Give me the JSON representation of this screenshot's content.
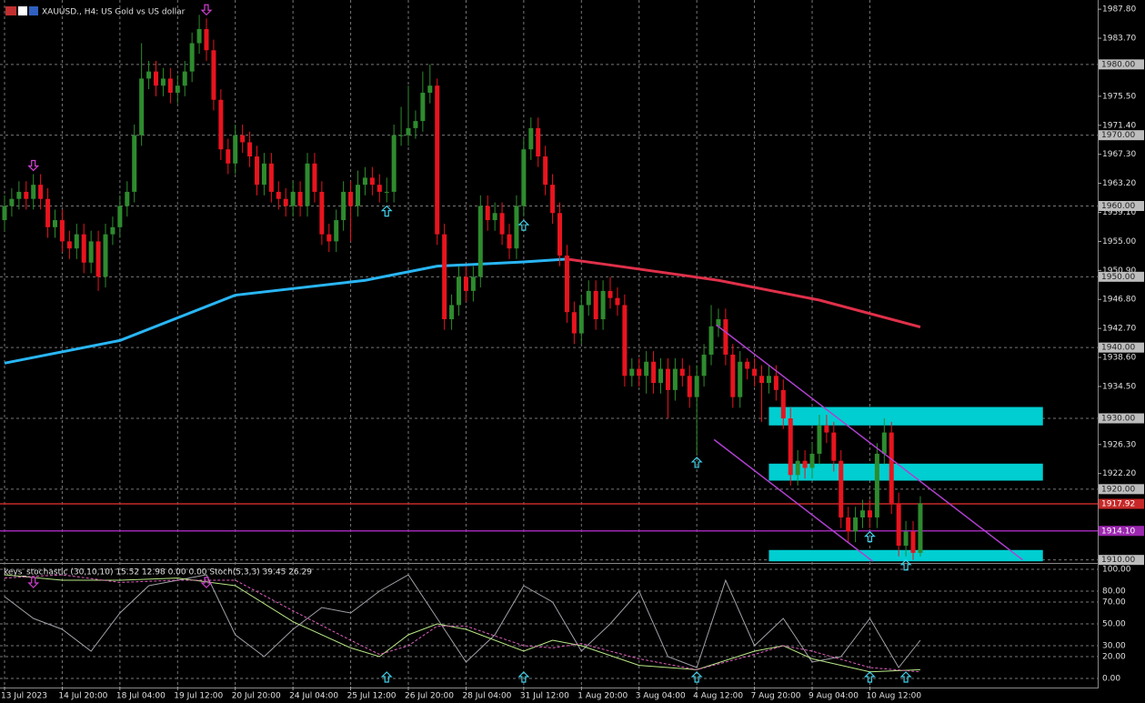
{
  "chart_data": {
    "type": "candlestick",
    "title": "XAUUSD., H4:  US Gold vs US dollar",
    "up_color": "#2e8b2e",
    "down_color": "#e8141e",
    "grid": true,
    "xlim": [
      -0.63,
      151.6
    ],
    "ylim": [
      1909.7,
      1989.1
    ],
    "xticks": [
      {
        "value": 0,
        "label": "13 Jul 2023"
      },
      {
        "value": 8,
        "label": "14 Jul 20:00"
      },
      {
        "value": 16,
        "label": "18 Jul 04:00"
      },
      {
        "value": 24,
        "label": "19 Jul 12:00"
      },
      {
        "value": 32,
        "label": "20 Jul 20:00"
      },
      {
        "value": 40,
        "label": "24 Jul 04:00"
      },
      {
        "value": 48,
        "label": "25 Jul 12:00"
      },
      {
        "value": 56,
        "label": "26 Jul 20:00"
      },
      {
        "value": 64,
        "label": "28 Jul 04:00"
      },
      {
        "value": 72,
        "label": "31 Jul 12:00"
      },
      {
        "value": 80,
        "label": "1 Aug 20:00"
      },
      {
        "value": 88,
        "label": "3 Aug 04:00"
      },
      {
        "value": 96,
        "label": "4 Aug 12:00"
      },
      {
        "value": 104,
        "label": "7 Aug 20:00"
      },
      {
        "value": 112,
        "label": "9 Aug 04:00"
      },
      {
        "value": 120,
        "label": "10 Aug 12:00"
      }
    ],
    "yticks": [
      {
        "value": 1987.8,
        "label": "1987.80"
      },
      {
        "value": 1983.7,
        "label": "1983.70"
      },
      {
        "value": 1975.5,
        "label": "1975.50"
      },
      {
        "value": 1971.4,
        "label": "1971.40"
      },
      {
        "value": 1967.3,
        "label": "1967.30"
      },
      {
        "value": 1963.2,
        "label": "1963.20"
      },
      {
        "value": 1959.1,
        "label": "1959.10"
      },
      {
        "value": 1955,
        "label": "1955.00"
      },
      {
        "value": 1950.9,
        "label": "1950.90"
      },
      {
        "value": 1946.8,
        "label": "1946.80"
      },
      {
        "value": 1942.7,
        "label": "1942.70"
      },
      {
        "value": 1938.6,
        "label": "1938.60"
      },
      {
        "value": 1934.5,
        "label": "1934.50"
      },
      {
        "value": 1926.3,
        "label": "1926.30"
      },
      {
        "value": 1922.2,
        "label": "1922.20"
      }
    ],
    "levels": [
      {
        "value": 1980,
        "label": "1980.00"
      },
      {
        "value": 1970,
        "label": "1970.00"
      },
      {
        "value": 1960,
        "label": "1960.00"
      },
      {
        "value": 1950,
        "label": "1950.00"
      },
      {
        "value": 1940,
        "label": "1940.00"
      },
      {
        "value": 1930,
        "label": "1930.00"
      },
      {
        "value": 1920,
        "label": "1920.00"
      },
      {
        "value": 1910,
        "label": "1910.00"
      }
    ],
    "hlines": [
      {
        "value": 1917.92,
        "label": "1917.92",
        "color": "#c62828"
      },
      {
        "value": 1914.1,
        "label": "1914.10",
        "color": "#9c27b0"
      }
    ],
    "zones": [
      [
        1929,
        1931.6
      ],
      [
        1921.2,
        1923.6
      ],
      [
        1909.8,
        1911.4
      ]
    ],
    "zone_start": 106,
    "zone_end": 144,
    "zone_color": "#00ced1",
    "trendlines": [
      [
        [
          98.7,
          1943.2
        ],
        [
          141.2,
          1910
        ]
      ],
      [
        [
          98.4,
          1927
        ],
        [
          120.4,
          1909.8
        ]
      ]
    ],
    "trendline_color": "#b040d0",
    "arrows_up": [
      53,
      72,
      96,
      120,
      125
    ],
    "arrows_down": [
      4,
      28
    ],
    "open": [
      1958,
      1960,
      1961,
      1962,
      1961,
      1963,
      1961,
      1957,
      1958,
      1955,
      1954,
      1956,
      1952,
      1955,
      1950,
      1956,
      1957,
      1960,
      1962,
      1970,
      1978,
      1979,
      1977,
      1978,
      1976,
      1977,
      1979,
      1983,
      1985,
      1982,
      1975,
      1968,
      1966,
      1970,
      1969,
      1967,
      1963,
      1966,
      1962,
      1961,
      1960,
      1962,
      1960,
      1966,
      1962,
      1956,
      1955,
      1958,
      1962,
      1960,
      1963,
      1964,
      1963,
      1962,
      1962,
      1970,
      1970,
      1971,
      1972,
      1976,
      1977,
      1956,
      1944,
      1946,
      1950,
      1948,
      1950,
      1960,
      1958,
      1959,
      1956,
      1954,
      1960,
      1968,
      1971,
      1967,
      1963,
      1959,
      1953,
      1945,
      1942,
      1946,
      1948,
      1944,
      1948,
      1947,
      1946,
      1936,
      1937,
      1936,
      1938,
      1935,
      1937,
      1934,
      1937,
      1936,
      1933,
      1936,
      1939,
      1943,
      1944,
      1939,
      1933,
      1938,
      1937,
      1936,
      1935,
      1936,
      1934,
      1930,
      1922,
      1924,
      1923,
      1925,
      1929,
      1928,
      1924,
      1916,
      1914,
      1916,
      1917,
      1916,
      1925,
      1928,
      1918,
      1912,
      1914,
      1911
    ],
    "high": [
      1961.5,
      1962.5,
      1963.5,
      1963.5,
      1964.5,
      1964.5,
      1962.5,
      1959.5,
      1959.5,
      1956.5,
      1957.5,
      1957.5,
      1956.5,
      1956.5,
      1957.5,
      1958.5,
      1961.5,
      1963.5,
      1971.5,
      1983,
      1980.5,
      1980.5,
      1979.5,
      1979.5,
      1978.5,
      1980.5,
      1984.5,
      1987,
      1986.5,
      1983.5,
      1976.5,
      1969.5,
      1971.5,
      1971.5,
      1970.5,
      1968.5,
      1967.5,
      1967.5,
      1963.5,
      1962.5,
      1963.5,
      1963.5,
      1967.5,
      1967.5,
      1963.5,
      1957.5,
      1959.5,
      1963.5,
      1963.5,
      1965,
      1965.5,
      1965.5,
      1964.5,
      1964,
      1971.5,
      1974,
      1977,
      1973.5,
      1979,
      1980,
      1978,
      1957.5,
      1947.5,
      1951.5,
      1951.5,
      1951.5,
      1961.5,
      1961.5,
      1960.5,
      1960.5,
      1957.5,
      1961.5,
      1969.5,
      1972.5,
      1972.5,
      1968.5,
      1964.5,
      1960.5,
      1954.5,
      1946.5,
      1947.5,
      1949.5,
      1949.5,
      1949.5,
      1950,
      1948.5,
      1947.5,
      1938.5,
      1938.5,
      1939.5,
      1939.5,
      1938.5,
      1938.5,
      1938.5,
      1938.5,
      1937.5,
      1937.5,
      1940.5,
      1946,
      1945.5,
      1945.5,
      1940.5,
      1939.5,
      1938.5,
      1938.5,
      1937.5,
      1937.5,
      1937.5,
      1935.5,
      1931.5,
      1925.5,
      1925.5,
      1926.5,
      1930.5,
      1930.5,
      1929.5,
      1925.5,
      1917.5,
      1917.5,
      1918.5,
      1918.5,
      1926.5,
      1930,
      1929.5,
      1919.5,
      1915.5,
      1915.5,
      1919
    ],
    "low": [
      1956.5,
      1958.5,
      1959.5,
      1959.5,
      1959.5,
      1959.5,
      1955.5,
      1955.5,
      1953.5,
      1952.5,
      1952.5,
      1950.5,
      1950.5,
      1948,
      1948.5,
      1954.5,
      1955.5,
      1958.5,
      1960.5,
      1968.5,
      1976.5,
      1975.5,
      1975.5,
      1974.5,
      1974.5,
      1975.5,
      1977.5,
      1981.5,
      1980.5,
      1973.5,
      1966.5,
      1964.5,
      1964.5,
      1967.5,
      1965.5,
      1961.5,
      1961.5,
      1960.5,
      1959.5,
      1958.5,
      1958.5,
      1958.5,
      1958.5,
      1960.5,
      1954.5,
      1953.5,
      1953.5,
      1956.5,
      1955,
      1958.5,
      1961.5,
      1961.5,
      1960.5,
      1960.5,
      1960.5,
      1968.5,
      1968.5,
      1969.5,
      1970.5,
      1974.5,
      1954.5,
      1942.5,
      1942.5,
      1944.5,
      1946.5,
      1946.5,
      1948.5,
      1956.5,
      1956.5,
      1954.5,
      1952.5,
      1952.5,
      1958.5,
      1966.5,
      1965.5,
      1961.5,
      1957.5,
      1951.5,
      1943.5,
      1940.5,
      1940.5,
      1944.5,
      1942.5,
      1942.5,
      1945.5,
      1944.5,
      1934.5,
      1934.5,
      1934.5,
      1933.5,
      1933.5,
      1933.5,
      1930,
      1932.5,
      1934.5,
      1931.5,
      1925,
      1934.5,
      1937.5,
      1941.5,
      1937.5,
      1931.5,
      1931.5,
      1935.5,
      1934.5,
      1929.5,
      1933.5,
      1932.5,
      1928.5,
      1920.5,
      1920.5,
      1921.5,
      1921.5,
      1923.5,
      1926.5,
      1922.5,
      1914.5,
      1912.5,
      1912.5,
      1914.5,
      1914.5,
      1914.5,
      1923.5,
      1916.5,
      1910.5,
      1910.5,
      1910,
      1910.5
    ],
    "close": [
      1960,
      1961,
      1962,
      1961,
      1963,
      1961,
      1957,
      1958,
      1955,
      1954,
      1956,
      1952,
      1955,
      1950,
      1956,
      1957,
      1960,
      1962,
      1970,
      1978,
      1979,
      1977,
      1978,
      1976,
      1977,
      1979,
      1983,
      1985,
      1982,
      1975,
      1968,
      1966,
      1970,
      1969,
      1967,
      1963,
      1966,
      1962,
      1961,
      1960,
      1962,
      1960,
      1966,
      1962,
      1956,
      1955,
      1958,
      1962,
      1960,
      1963,
      1964,
      1963,
      1962,
      1962,
      1970,
      1970,
      1971,
      1972,
      1976,
      1977,
      1956,
      1944,
      1946,
      1950,
      1948,
      1950,
      1960,
      1958,
      1959,
      1956,
      1954,
      1960,
      1968,
      1971,
      1967,
      1963,
      1959,
      1953,
      1945,
      1942,
      1946,
      1948,
      1944,
      1948,
      1947,
      1946,
      1936,
      1937,
      1936,
      1938,
      1935,
      1937,
      1934,
      1937,
      1936,
      1933,
      1936,
      1939,
      1943,
      1944,
      1939,
      1933,
      1938,
      1937,
      1936,
      1935,
      1936,
      1934,
      1930,
      1922,
      1924,
      1923,
      1925,
      1929,
      1928,
      1924,
      1916,
      1914,
      1916,
      1917,
      1916,
      1925,
      1928,
      1918,
      1912,
      1914,
      1911,
      1918
    ],
    "ma": [
      {
        "color": "#29b6f6",
        "x": [
          0,
          16,
          32,
          50,
          60,
          72,
          78
        ],
        "values": [
          1937.8,
          1941,
          1947.4,
          1949.5,
          1951.5,
          1952.1,
          1952.5
        ]
      },
      {
        "color": "#e0304a",
        "x": [
          78,
          83,
          99,
          113,
          127
        ],
        "values": [
          1952.5,
          1951.8,
          1949.5,
          1946.7,
          1942.9
        ]
      }
    ],
    "oscillator": {
      "label": "keys_stochastic (30,10,10) 15.52 12.98 0.00 0.00 Stoch(5,3,3) 39.45 26.29",
      "ylim": [
        -7.5,
        105
      ],
      "yticks": [
        {
          "value": 100,
          "label": "100.00"
        },
        {
          "value": 80,
          "label": "80.00"
        },
        {
          "value": 70,
          "label": "70.00"
        },
        {
          "value": 50,
          "label": "50.00"
        },
        {
          "value": 30,
          "label": "30.00"
        },
        {
          "value": 20,
          "label": "20.00"
        },
        {
          "value": 0,
          "label": "0.00"
        }
      ],
      "series": [
        {
          "color": "#a0a0a8",
          "dashed": false,
          "x": [
            0,
            4,
            8,
            12,
            16,
            20,
            24,
            28,
            32,
            36,
            40,
            44,
            48,
            52,
            56,
            60,
            64,
            68,
            72,
            76,
            80,
            84,
            88,
            92,
            96,
            100,
            104,
            108,
            112,
            116,
            120,
            124,
            127
          ],
          "values": [
            75,
            55,
            45,
            25,
            60,
            85,
            90,
            95,
            40,
            20,
            45,
            65,
            60,
            80,
            95,
            55,
            15,
            40,
            85,
            70,
            25,
            50,
            80,
            20,
            10,
            90,
            30,
            55,
            15,
            20,
            55,
            10,
            35
          ]
        },
        {
          "color": "#b8e986",
          "dashed": false,
          "x": [
            0,
            8,
            16,
            24,
            32,
            40,
            48,
            52,
            56,
            60,
            64,
            72,
            76,
            80,
            88,
            96,
            104,
            108,
            112,
            120,
            127
          ],
          "values": [
            95,
            90,
            90,
            92,
            85,
            52,
            28,
            20,
            40,
            50,
            45,
            25,
            35,
            30,
            12,
            8,
            25,
            30,
            18,
            6,
            8
          ]
        },
        {
          "color": "#e060c0",
          "dashed": true,
          "x": [
            0,
            8,
            16,
            24,
            32,
            40,
            48,
            52,
            56,
            60,
            64,
            72,
            76,
            80,
            88,
            96,
            104,
            108,
            112,
            120,
            127
          ],
          "values": [
            92,
            95,
            88,
            90,
            90,
            62,
            35,
            22,
            30,
            48,
            48,
            30,
            28,
            32,
            18,
            8,
            22,
            30,
            25,
            10,
            6
          ]
        }
      ]
    }
  }
}
